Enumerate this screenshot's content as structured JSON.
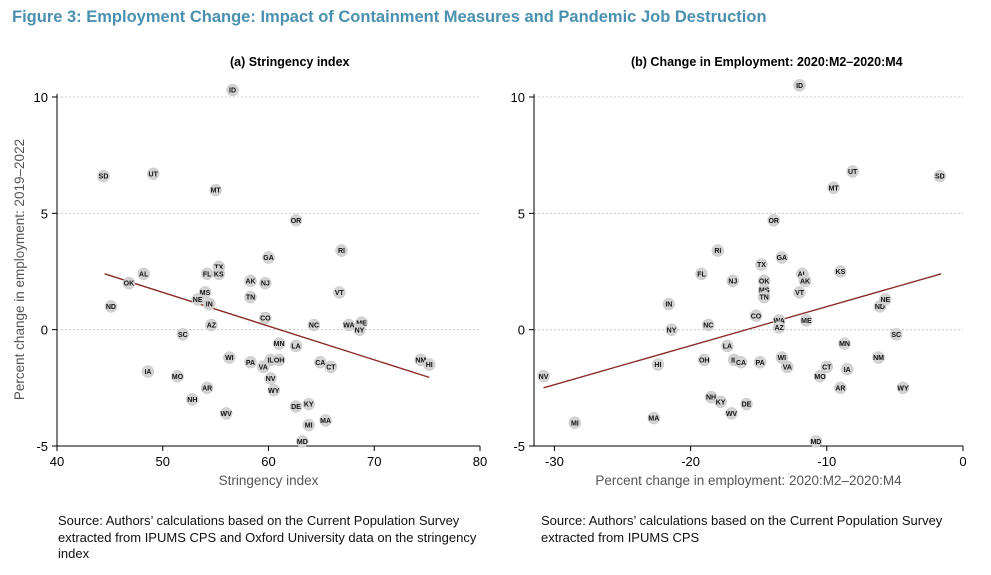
{
  "figure_title": "Figure 3: Employment Change: Impact of Containment Measures and Pandemic Job Destruction",
  "panels": [
    {
      "subtitle": "(a) Stringency index",
      "source": "Source: Authors’ calculations based on the Current Population Survey extracted from IPUMS CPS and Oxford University data on the stringency index"
    },
    {
      "subtitle": "(b) Change in Employment: 2020:M2–2020:M4",
      "source": "Source: Authors’ calculations based on the Current Population Survey extracted from IPUMS CPS"
    }
  ],
  "colors": {
    "title": "#4a90b0",
    "fit_line": "#8b2a2a",
    "marker": "#d3d3d3",
    "grid": "#bfbfbf"
  },
  "chart_data": [
    {
      "type": "scatter",
      "title": "(a) Stringency index",
      "xlabel": "Stringency index",
      "ylabel": "Percent change in employment: 2019–2022",
      "xlim": [
        40,
        80
      ],
      "ylim": [
        -5,
        10
      ],
      "xticks": [
        40,
        50,
        60,
        70,
        80
      ],
      "yticks": [
        -5,
        0,
        5,
        10
      ],
      "grid": "horizontal dashed",
      "fit_line": {
        "x": [
          44.5,
          75.2
        ],
        "y": [
          2.4,
          -2.05
        ]
      },
      "points": [
        {
          "label": "ID",
          "x": 56.6,
          "y": 10.3
        },
        {
          "label": "SD",
          "x": 44.4,
          "y": 6.6
        },
        {
          "label": "UT",
          "x": 49.1,
          "y": 6.7
        },
        {
          "label": "MT",
          "x": 55.0,
          "y": 6.0
        },
        {
          "label": "OR",
          "x": 62.6,
          "y": 4.7
        },
        {
          "label": "RI",
          "x": 66.9,
          "y": 3.4
        },
        {
          "label": "GA",
          "x": 60.0,
          "y": 3.1
        },
        {
          "label": "TX",
          "x": 55.3,
          "y": 2.7
        },
        {
          "label": "FL",
          "x": 54.2,
          "y": 2.4
        },
        {
          "label": "KS",
          "x": 55.3,
          "y": 2.4
        },
        {
          "label": "AL",
          "x": 48.2,
          "y": 2.4
        },
        {
          "label": "OK",
          "x": 46.8,
          "y": 2.0
        },
        {
          "label": "AK",
          "x": 58.3,
          "y": 2.1
        },
        {
          "label": "NJ",
          "x": 59.7,
          "y": 2.0
        },
        {
          "label": "MS",
          "x": 54.0,
          "y": 1.6
        },
        {
          "label": "VT",
          "x": 66.7,
          "y": 1.6
        },
        {
          "label": "TN",
          "x": 58.3,
          "y": 1.4
        },
        {
          "label": "NE",
          "x": 53.3,
          "y": 1.3
        },
        {
          "label": "IN",
          "x": 54.4,
          "y": 1.1
        },
        {
          "label": "ND",
          "x": 45.1,
          "y": 1.0
        },
        {
          "label": "CO",
          "x": 59.7,
          "y": 0.5
        },
        {
          "label": "AZ",
          "x": 54.6,
          "y": 0.2
        },
        {
          "label": "NC",
          "x": 64.3,
          "y": 0.2
        },
        {
          "label": "WA",
          "x": 67.6,
          "y": 0.2
        },
        {
          "label": "ME",
          "x": 68.8,
          "y": 0.3
        },
        {
          "label": "NY",
          "x": 68.6,
          "y": 0.0
        },
        {
          "label": "SC",
          "x": 51.9,
          "y": -0.2
        },
        {
          "label": "MN",
          "x": 61.0,
          "y": -0.6
        },
        {
          "label": "LA",
          "x": 62.6,
          "y": -0.7
        },
        {
          "label": "WI",
          "x": 56.3,
          "y": -1.2
        },
        {
          "label": "PA",
          "x": 58.3,
          "y": -1.4
        },
        {
          "label": "IL",
          "x": 60.2,
          "y": -1.3
        },
        {
          "label": "OH",
          "x": 61.0,
          "y": -1.3
        },
        {
          "label": "VA",
          "x": 59.5,
          "y": -1.6
        },
        {
          "label": "CA",
          "x": 64.9,
          "y": -1.4
        },
        {
          "label": "CT",
          "x": 65.9,
          "y": -1.6
        },
        {
          "label": "NM",
          "x": 74.4,
          "y": -1.3
        },
        {
          "label": "HI",
          "x": 75.2,
          "y": -1.5
        },
        {
          "label": "IA",
          "x": 48.6,
          "y": -1.8
        },
        {
          "label": "MO",
          "x": 51.4,
          "y": -2.0
        },
        {
          "label": "NV",
          "x": 60.2,
          "y": -2.1
        },
        {
          "label": "AR",
          "x": 54.2,
          "y": -2.5
        },
        {
          "label": "WY",
          "x": 60.5,
          "y": -2.6
        },
        {
          "label": "NH",
          "x": 52.8,
          "y": -3.0
        },
        {
          "label": "DE",
          "x": 62.6,
          "y": -3.3
        },
        {
          "label": "KY",
          "x": 63.8,
          "y": -3.2
        },
        {
          "label": "WV",
          "x": 56.0,
          "y": -3.6
        },
        {
          "label": "MA",
          "x": 65.4,
          "y": -3.9
        },
        {
          "label": "MI",
          "x": 63.8,
          "y": -4.1
        },
        {
          "label": "MD",
          "x": 63.2,
          "y": -4.8
        }
      ]
    },
    {
      "type": "scatter",
      "title": "(b) Change in Employment: 2020:M2–2020:M4",
      "xlabel": "Percent change in employment: 2020:M2–2020:M4",
      "ylabel": "",
      "xlim": [
        -31.5,
        0
      ],
      "ylim": [
        -5,
        10
      ],
      "xticks": [
        -30,
        -20,
        -10,
        0
      ],
      "yticks": [
        -5,
        0,
        5,
        10
      ],
      "grid": "horizontal dashed",
      "fit_line": {
        "x": [
          -30.8,
          -1.6
        ],
        "y": [
          -2.5,
          2.4
        ]
      },
      "points": [
        {
          "label": "ID",
          "x": -12.0,
          "y": 10.5
        },
        {
          "label": "SD",
          "x": -1.7,
          "y": 6.6
        },
        {
          "label": "UT",
          "x": -8.1,
          "y": 6.8
        },
        {
          "label": "MT",
          "x": -9.5,
          "y": 6.1
        },
        {
          "label": "OR",
          "x": -13.9,
          "y": 4.7
        },
        {
          "label": "RI",
          "x": -18.0,
          "y": 3.4
        },
        {
          "label": "GA",
          "x": -13.3,
          "y": 3.1
        },
        {
          "label": "TX",
          "x": -14.8,
          "y": 2.8
        },
        {
          "label": "FL",
          "x": -19.2,
          "y": 2.4
        },
        {
          "label": "KS",
          "x": -9.0,
          "y": 2.5
        },
        {
          "label": "AL",
          "x": -11.8,
          "y": 2.4
        },
        {
          "label": "AK",
          "x": -11.6,
          "y": 2.1
        },
        {
          "label": "NJ",
          "x": -16.9,
          "y": 2.1
        },
        {
          "label": "OK",
          "x": -14.6,
          "y": 2.1
        },
        {
          "label": "MS",
          "x": -14.6,
          "y": 1.7
        },
        {
          "label": "VT",
          "x": -12.0,
          "y": 1.6
        },
        {
          "label": "TN",
          "x": -14.6,
          "y": 1.4
        },
        {
          "label": "ND",
          "x": -6.1,
          "y": 1.0
        },
        {
          "label": "NE",
          "x": -5.7,
          "y": 1.3
        },
        {
          "label": "IN",
          "x": -21.6,
          "y": 1.1
        },
        {
          "label": "CO",
          "x": -15.2,
          "y": 0.6
        },
        {
          "label": "NC",
          "x": -18.7,
          "y": 0.2
        },
        {
          "label": "WA",
          "x": -13.5,
          "y": 0.4
        },
        {
          "label": "AZ",
          "x": -13.5,
          "y": 0.1
        },
        {
          "label": "ME",
          "x": -11.5,
          "y": 0.4
        },
        {
          "label": "NY",
          "x": -21.4,
          "y": 0.0
        },
        {
          "label": "SC",
          "x": -4.9,
          "y": -0.2
        },
        {
          "label": "MN",
          "x": -8.7,
          "y": -0.6
        },
        {
          "label": "LA",
          "x": -17.3,
          "y": -0.7
        },
        {
          "label": "WI",
          "x": -13.3,
          "y": -1.2
        },
        {
          "label": "OH",
          "x": -19.0,
          "y": -1.3
        },
        {
          "label": "IL",
          "x": -16.8,
          "y": -1.3
        },
        {
          "label": "CA",
          "x": -16.3,
          "y": -1.4
        },
        {
          "label": "PA",
          "x": -14.9,
          "y": -1.4
        },
        {
          "label": "VA",
          "x": -12.9,
          "y": -1.6
        },
        {
          "label": "CT",
          "x": -10.0,
          "y": -1.6
        },
        {
          "label": "IA",
          "x": -8.5,
          "y": -1.7
        },
        {
          "label": "NM",
          "x": -6.2,
          "y": -1.2
        },
        {
          "label": "HI",
          "x": -22.4,
          "y": -1.5
        },
        {
          "label": "MO",
          "x": -10.5,
          "y": -2.0
        },
        {
          "label": "NV",
          "x": -30.8,
          "y": -2.0
        },
        {
          "label": "AR",
          "x": -9.0,
          "y": -2.5
        },
        {
          "label": "WY",
          "x": -4.4,
          "y": -2.5
        },
        {
          "label": "NH",
          "x": -18.5,
          "y": -2.9
        },
        {
          "label": "KY",
          "x": -17.8,
          "y": -3.1
        },
        {
          "label": "DE",
          "x": -15.9,
          "y": -3.2
        },
        {
          "label": "WV",
          "x": -17.0,
          "y": -3.6
        },
        {
          "label": "MA",
          "x": -22.7,
          "y": -3.8
        },
        {
          "label": "MI",
          "x": -28.5,
          "y": -4.0
        },
        {
          "label": "MD",
          "x": -10.8,
          "y": -4.8
        }
      ]
    }
  ]
}
